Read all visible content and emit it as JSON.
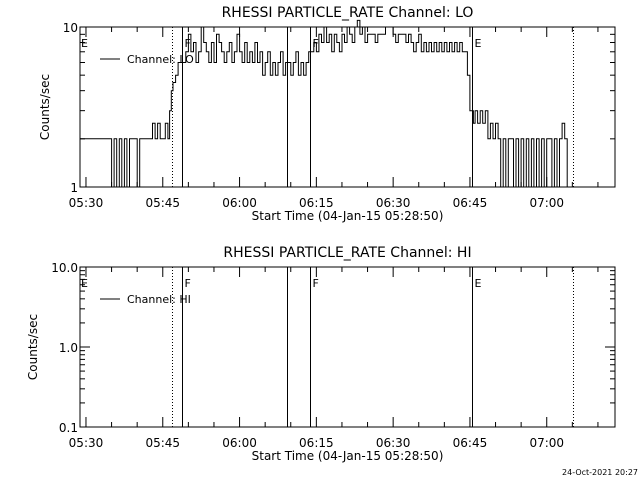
{
  "footer": {
    "timestamp": "24-Oct-2021 20:27"
  },
  "chart_data": [
    {
      "type": "line",
      "title": "RHESSI PARTICLE_RATE Channel: LO",
      "xlabel": "Start Time (04-Jan-15 05:28:50)",
      "ylabel": "Counts/sec",
      "xlim_seconds_from_start": [
        0,
        6270
      ],
      "x_tick_labels": [
        "05:30",
        "05:45",
        "06:00",
        "06:15",
        "06:30",
        "06:45",
        "07:00"
      ],
      "y_scale": "log",
      "ylim": [
        1,
        10
      ],
      "y_tick_labels": [
        "1",
        "10"
      ],
      "legend": {
        "entries": [
          "Channel: LO"
        ],
        "placement": "top-left"
      },
      "markers": [
        {
          "x": "05:46:45",
          "style": "dotted",
          "label": ""
        },
        {
          "x": "05:48:45",
          "style": "solid",
          "label": "F"
        },
        {
          "x": "06:09:15",
          "style": "solid",
          "label": ""
        },
        {
          "x": "06:13:45",
          "style": "solid",
          "label": "F"
        },
        {
          "x": "06:45:25",
          "style": "solid",
          "label": "E"
        },
        {
          "x": "07:05:05",
          "style": "dotted",
          "label": ""
        }
      ],
      "edge_labels": [
        {
          "x": "05:29:05",
          "label": "E"
        }
      ],
      "series": [
        {
          "name": "Channel: LO",
          "points": [
            [
              "05:28:50",
              2
            ],
            [
              "05:34:30",
              2
            ],
            [
              "05:35:00",
              1
            ],
            [
              "05:35:30",
              2
            ],
            [
              "05:36:00",
              1
            ],
            [
              "05:36:30",
              2
            ],
            [
              "05:37:00",
              1
            ],
            [
              "05:37:30",
              2
            ],
            [
              "05:38:00",
              1
            ],
            [
              "05:38:30",
              2
            ],
            [
              "05:39:30",
              2
            ],
            [
              "05:40:00",
              1
            ],
            [
              "05:40:30",
              2
            ],
            [
              "05:42:30",
              2
            ],
            [
              "05:43:00",
              2.5
            ],
            [
              "05:43:30",
              2
            ],
            [
              "05:44:00",
              2.5
            ],
            [
              "05:44:30",
              2
            ],
            [
              "05:45:00",
              2
            ],
            [
              "05:45:30",
              2.5
            ],
            [
              "05:46:00",
              2
            ],
            [
              "05:46:20",
              3
            ],
            [
              "05:46:40",
              4
            ],
            [
              "05:47:00",
              4.5
            ],
            [
              "05:47:30",
              5
            ],
            [
              "05:48:00",
              6
            ],
            [
              "05:49:00",
              6
            ],
            [
              "05:49:30",
              7
            ],
            [
              "05:50:00",
              9
            ],
            [
              "05:50:30",
              7
            ],
            [
              "05:51:00",
              8
            ],
            [
              "05:51:30",
              6
            ],
            [
              "05:52:00",
              7
            ],
            [
              "05:52:30",
              10
            ],
            [
              "05:53:00",
              8
            ],
            [
              "05:53:30",
              7
            ],
            [
              "05:54:00",
              6
            ],
            [
              "05:54:30",
              8
            ],
            [
              "05:55:00",
              6
            ],
            [
              "05:55:30",
              9
            ],
            [
              "05:56:00",
              8
            ],
            [
              "05:56:30",
              7
            ],
            [
              "05:57:00",
              6
            ],
            [
              "05:57:30",
              7
            ],
            [
              "05:58:00",
              8
            ],
            [
              "05:58:30",
              6
            ],
            [
              "05:59:00",
              7
            ],
            [
              "05:59:30",
              9
            ],
            [
              "06:00:00",
              7
            ],
            [
              "06:00:30",
              6
            ],
            [
              "06:01:00",
              8
            ],
            [
              "06:01:30",
              6
            ],
            [
              "06:02:00",
              7
            ],
            [
              "06:02:30",
              6
            ],
            [
              "06:03:00",
              8
            ],
            [
              "06:03:30",
              6
            ],
            [
              "06:04:00",
              7
            ],
            [
              "06:04:30",
              5
            ],
            [
              "06:05:00",
              6
            ],
            [
              "06:05:30",
              7
            ],
            [
              "06:06:00",
              5
            ],
            [
              "06:06:30",
              6
            ],
            [
              "06:07:00",
              5
            ],
            [
              "06:07:30",
              6
            ],
            [
              "06:08:00",
              7
            ],
            [
              "06:08:30",
              5
            ],
            [
              "06:09:00",
              6
            ],
            [
              "06:09:30",
              6
            ],
            [
              "06:10:00",
              5
            ],
            [
              "06:10:30",
              6
            ],
            [
              "06:11:00",
              7
            ],
            [
              "06:11:30",
              5
            ],
            [
              "06:12:00",
              6
            ],
            [
              "06:12:30",
              5
            ],
            [
              "06:13:00",
              6
            ],
            [
              "06:13:30",
              7
            ],
            [
              "06:14:00",
              7
            ],
            [
              "06:14:30",
              8
            ],
            [
              "06:15:00",
              7
            ],
            [
              "06:15:30",
              9
            ],
            [
              "06:16:00",
              8
            ],
            [
              "06:16:30",
              10
            ],
            [
              "06:17:00",
              8
            ],
            [
              "06:17:30",
              9
            ],
            [
              "06:18:00",
              7
            ],
            [
              "06:18:30",
              9
            ],
            [
              "06:19:00",
              8
            ],
            [
              "06:19:30",
              7
            ],
            [
              "06:20:00",
              9
            ],
            [
              "06:20:30",
              8
            ],
            [
              "06:21:00",
              10
            ],
            [
              "06:21:30",
              9
            ],
            [
              "06:22:00",
              8
            ],
            [
              "06:22:30",
              10
            ],
            [
              "06:23:00",
              11
            ],
            [
              "06:23:30",
              9
            ],
            [
              "06:24:00",
              10
            ],
            [
              "06:24:30",
              8
            ],
            [
              "06:25:00",
              9
            ],
            [
              "06:26:00",
              9
            ],
            [
              "06:26:30",
              8
            ],
            [
              "06:27:00",
              9
            ],
            [
              "06:28:00",
              9
            ],
            [
              "06:28:30",
              10
            ],
            [
              "06:29:30",
              10
            ],
            [
              "06:30:00",
              9
            ],
            [
              "06:30:30",
              8
            ],
            [
              "06:31:00",
              9
            ],
            [
              "06:32:00",
              9
            ],
            [
              "06:32:30",
              8
            ],
            [
              "06:33:00",
              9
            ],
            [
              "06:33:30",
              8
            ],
            [
              "06:34:00",
              7
            ],
            [
              "06:34:30",
              8
            ],
            [
              "06:35:00",
              9
            ],
            [
              "06:35:30",
              7
            ],
            [
              "06:36:00",
              8
            ],
            [
              "06:36:30",
              7
            ],
            [
              "06:37:00",
              8
            ],
            [
              "06:37:30",
              7
            ],
            [
              "06:38:00",
              8
            ],
            [
              "06:38:30",
              7
            ],
            [
              "06:39:00",
              8
            ],
            [
              "06:39:30",
              7
            ],
            [
              "06:40:00",
              8
            ],
            [
              "06:40:30",
              7
            ],
            [
              "06:41:00",
              8
            ],
            [
              "06:41:30",
              7
            ],
            [
              "06:42:00",
              8
            ],
            [
              "06:42:30",
              7
            ],
            [
              "06:43:00",
              8
            ],
            [
              "06:43:30",
              7
            ],
            [
              "06:44:00",
              7
            ],
            [
              "06:44:30",
              5
            ],
            [
              "06:45:00",
              3
            ],
            [
              "06:45:40",
              2.5
            ],
            [
              "06:46:00",
              3
            ],
            [
              "06:46:30",
              2.5
            ],
            [
              "06:47:00",
              3
            ],
            [
              "06:47:30",
              2.5
            ],
            [
              "06:48:00",
              3
            ],
            [
              "06:48:30",
              2
            ],
            [
              "06:49:00",
              2.5
            ],
            [
              "06:49:30",
              2
            ],
            [
              "06:50:00",
              2.5
            ],
            [
              "06:50:30",
              2
            ],
            [
              "06:51:00",
              1
            ],
            [
              "06:51:30",
              2
            ],
            [
              "06:52:00",
              1
            ],
            [
              "06:52:30",
              2
            ],
            [
              "06:53:00",
              2
            ],
            [
              "06:53:30",
              1
            ],
            [
              "06:54:00",
              2
            ],
            [
              "06:54:30",
              1
            ],
            [
              "06:55:00",
              2
            ],
            [
              "06:55:30",
              1
            ],
            [
              "06:56:00",
              2
            ],
            [
              "06:56:30",
              1
            ],
            [
              "06:57:00",
              2
            ],
            [
              "06:57:30",
              1
            ],
            [
              "06:58:00",
              2
            ],
            [
              "06:58:30",
              1
            ],
            [
              "06:59:00",
              2
            ],
            [
              "06:59:30",
              1
            ],
            [
              "07:00:00",
              2
            ],
            [
              "07:00:30",
              2
            ],
            [
              "07:01:00",
              1
            ],
            [
              "07:01:30",
              2
            ],
            [
              "07:02:00",
              1
            ],
            [
              "07:02:30",
              2
            ],
            [
              "07:03:00",
              2.5
            ],
            [
              "07:03:30",
              2
            ],
            [
              "07:04:00",
              1
            ]
          ]
        }
      ]
    },
    {
      "type": "line",
      "title": "RHESSI PARTICLE_RATE Channel: HI",
      "xlabel": "Start Time (04-Jan-15 05:28:50)",
      "ylabel": "Counts/sec",
      "xlim_seconds_from_start": [
        0,
        6270
      ],
      "x_tick_labels": [
        "05:30",
        "05:45",
        "06:00",
        "06:15",
        "06:30",
        "06:45",
        "07:00"
      ],
      "y_scale": "log",
      "ylim": [
        0.1,
        10
      ],
      "y_tick_labels": [
        "0.1",
        "1.0",
        "10.0"
      ],
      "legend": {
        "entries": [
          "Channel: HI"
        ],
        "placement": "top-left"
      },
      "markers": [
        {
          "x": "05:46:45",
          "style": "dotted",
          "label": ""
        },
        {
          "x": "05:48:45",
          "style": "solid",
          "label": "F"
        },
        {
          "x": "06:09:15",
          "style": "solid",
          "label": ""
        },
        {
          "x": "06:13:45",
          "style": "solid",
          "label": "F"
        },
        {
          "x": "06:45:25",
          "style": "solid",
          "label": "E"
        },
        {
          "x": "07:05:05",
          "style": "dotted",
          "label": ""
        }
      ],
      "edge_labels": [
        {
          "x": "05:29:05",
          "label": "E"
        }
      ],
      "series": [
        {
          "name": "Channel: HI",
          "points": []
        }
      ]
    }
  ]
}
